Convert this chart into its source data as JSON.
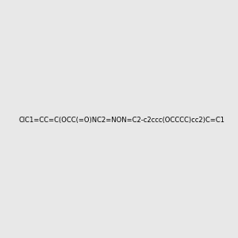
{
  "smiles": "ClC1=CC=C(OCC(=O)NC2=NON=C2-c2ccc(OCCCC)cc2)C=C1",
  "title": "",
  "bg_color": "#e8e8e8",
  "img_size": [
    300,
    300
  ]
}
